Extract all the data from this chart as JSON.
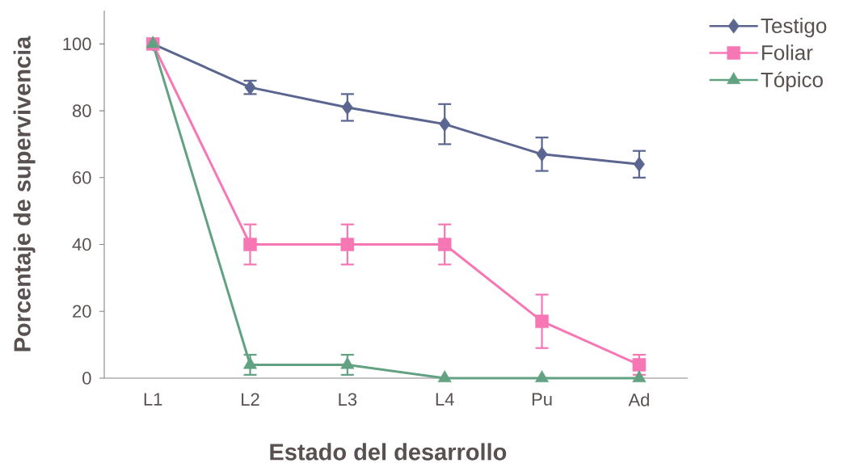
{
  "chart_data": {
    "type": "line",
    "xlabel": "Estado del desarrollo",
    "ylabel": "Porcentaje de supervivencia",
    "categories": [
      "L1",
      "L2",
      "L3",
      "L4",
      "Pu",
      "Ad"
    ],
    "ylim": [
      0,
      110
    ],
    "yticks": [
      0,
      20,
      40,
      60,
      80,
      100
    ],
    "grid": false,
    "legend": "top right",
    "line_style": "solid",
    "series": [
      {
        "name": "Testigo",
        "color": "#5a6590",
        "marker": "diamond",
        "values": [
          100,
          87,
          81,
          76,
          67,
          64
        ],
        "errors": [
          null,
          2,
          4,
          6,
          5,
          4
        ]
      },
      {
        "name": "Foliar",
        "color": "#f777b4",
        "marker": "square",
        "values": [
          100,
          40,
          40,
          40,
          17,
          4
        ],
        "errors": [
          null,
          6,
          6,
          6,
          8,
          3
        ]
      },
      {
        "name": "Tópico",
        "color": "#62a282",
        "marker": "triangle",
        "values": [
          100,
          4,
          4,
          0,
          0,
          0
        ],
        "errors": [
          null,
          3,
          3,
          null,
          null,
          null
        ]
      }
    ]
  }
}
